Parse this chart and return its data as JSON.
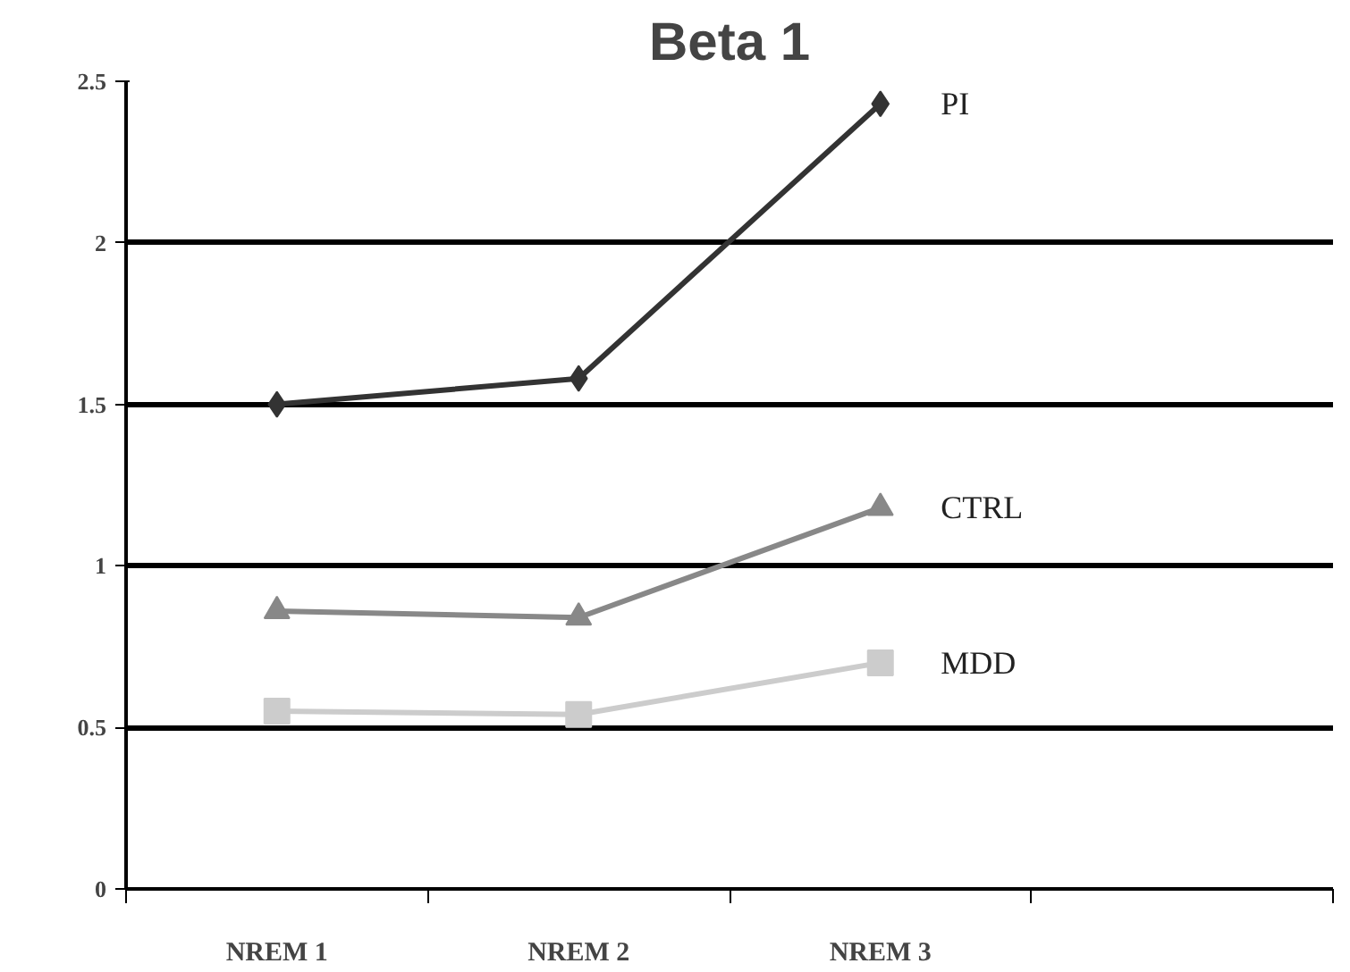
{
  "chart_data": {
    "type": "line",
    "title": "Beta 1",
    "categories": [
      "NREM 1",
      "NREM 2",
      "NREM 3",
      null
    ],
    "series": [
      {
        "name": "PI",
        "color": "#333333",
        "marker": "diamond",
        "values": [
          1.5,
          1.58,
          2.43,
          null
        ]
      },
      {
        "name": "CTRL",
        "color": "#888888",
        "marker": "triangle",
        "values": [
          0.86,
          0.84,
          1.18,
          null
        ]
      },
      {
        "name": "MDD",
        "color": "#cccccc",
        "marker": "square",
        "values": [
          0.55,
          0.54,
          0.7,
          null
        ]
      }
    ],
    "ylim": [
      0,
      2.5
    ],
    "yticks": [
      0,
      0.5,
      1,
      1.5,
      2,
      2.5
    ],
    "grid": "y",
    "legend": false
  }
}
